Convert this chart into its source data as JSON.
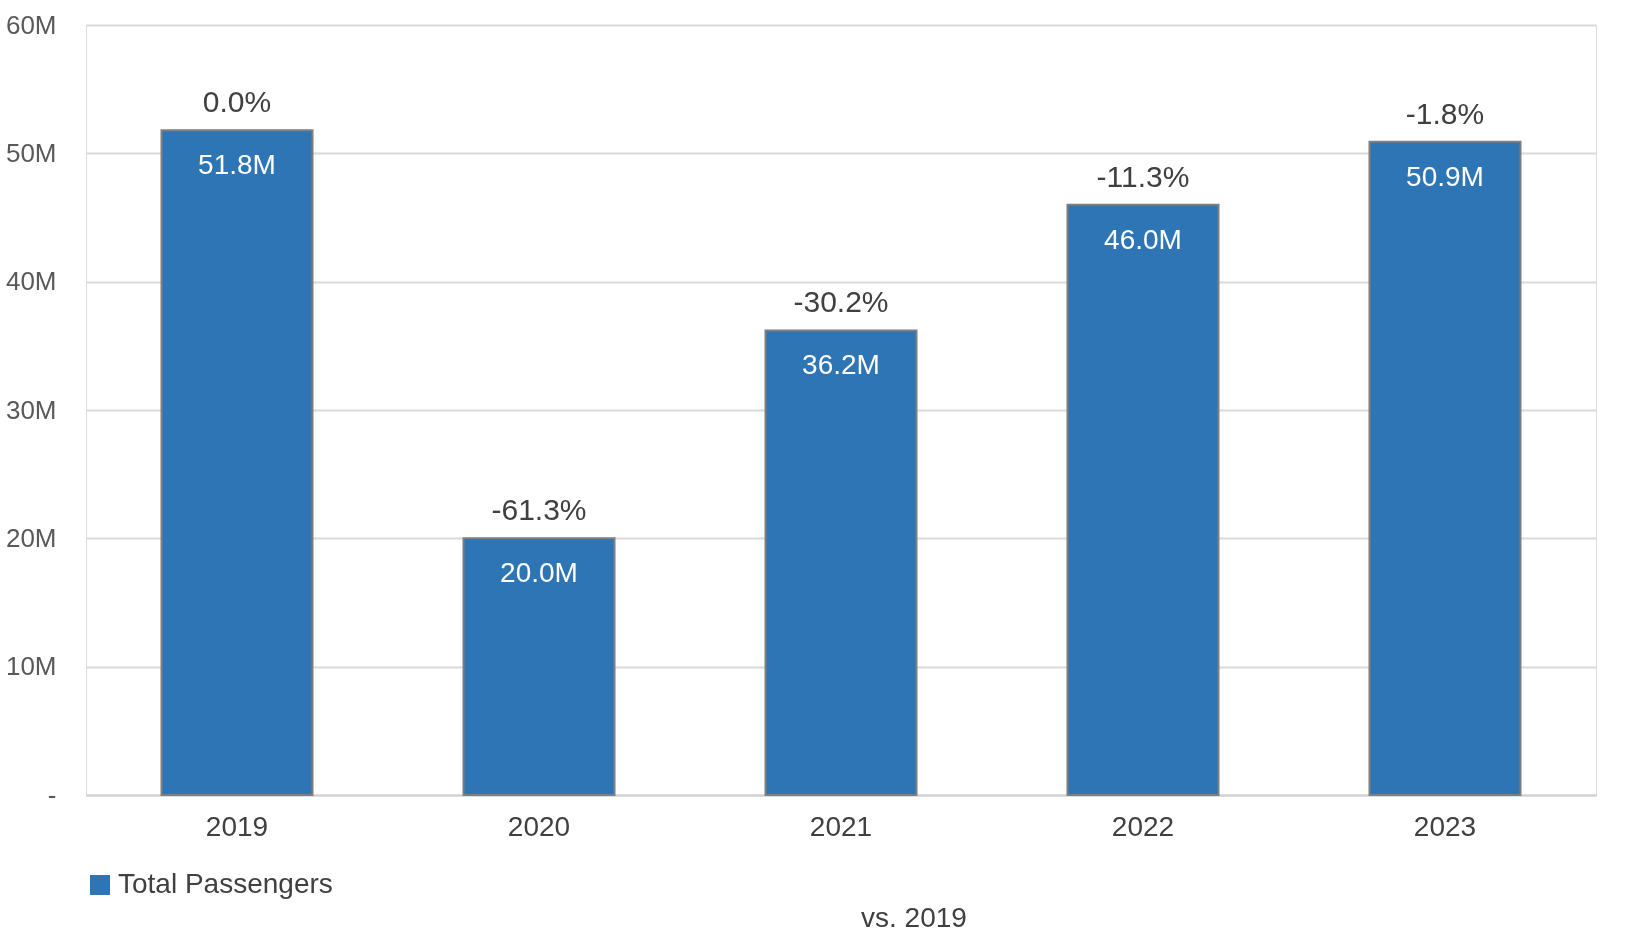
{
  "chart_data": {
    "type": "bar",
    "categories": [
      "2019",
      "2020",
      "2021",
      "2022",
      "2023"
    ],
    "series": [
      {
        "name": "Total Passengers",
        "color": "#2e75b6",
        "values": [
          51.8,
          20.0,
          36.2,
          46.0,
          50.9
        ],
        "value_labels": [
          "51.8M",
          "20.0M",
          "36.2M",
          "46.0M",
          "50.9M"
        ]
      }
    ],
    "ylim": [
      0,
      60
    ],
    "yticks": [
      {
        "value": 0,
        "label": "-"
      },
      {
        "value": 10,
        "label": "10M"
      },
      {
        "value": 20,
        "label": "20M"
      },
      {
        "value": 30,
        "label": "30M"
      },
      {
        "value": 40,
        "label": "40M"
      },
      {
        "value": 50,
        "label": "50M"
      },
      {
        "value": 60,
        "label": "60M"
      }
    ],
    "annotations": [
      {
        "text": "0.0%",
        "x": "2019",
        "y": 51.8
      },
      {
        "text": "-61.3%",
        "x": "2020",
        "y": 20.0
      },
      {
        "text": "-30.2%",
        "x": "2021",
        "y": 36.2
      },
      {
        "text": "-11.3%",
        "x": "2022",
        "y": 46.0
      },
      {
        "text": "-1.8%",
        "x": "2023",
        "y": 50.9
      },
      "vs. 2019"
    ],
    "grid": "y",
    "legend": "bottom"
  }
}
